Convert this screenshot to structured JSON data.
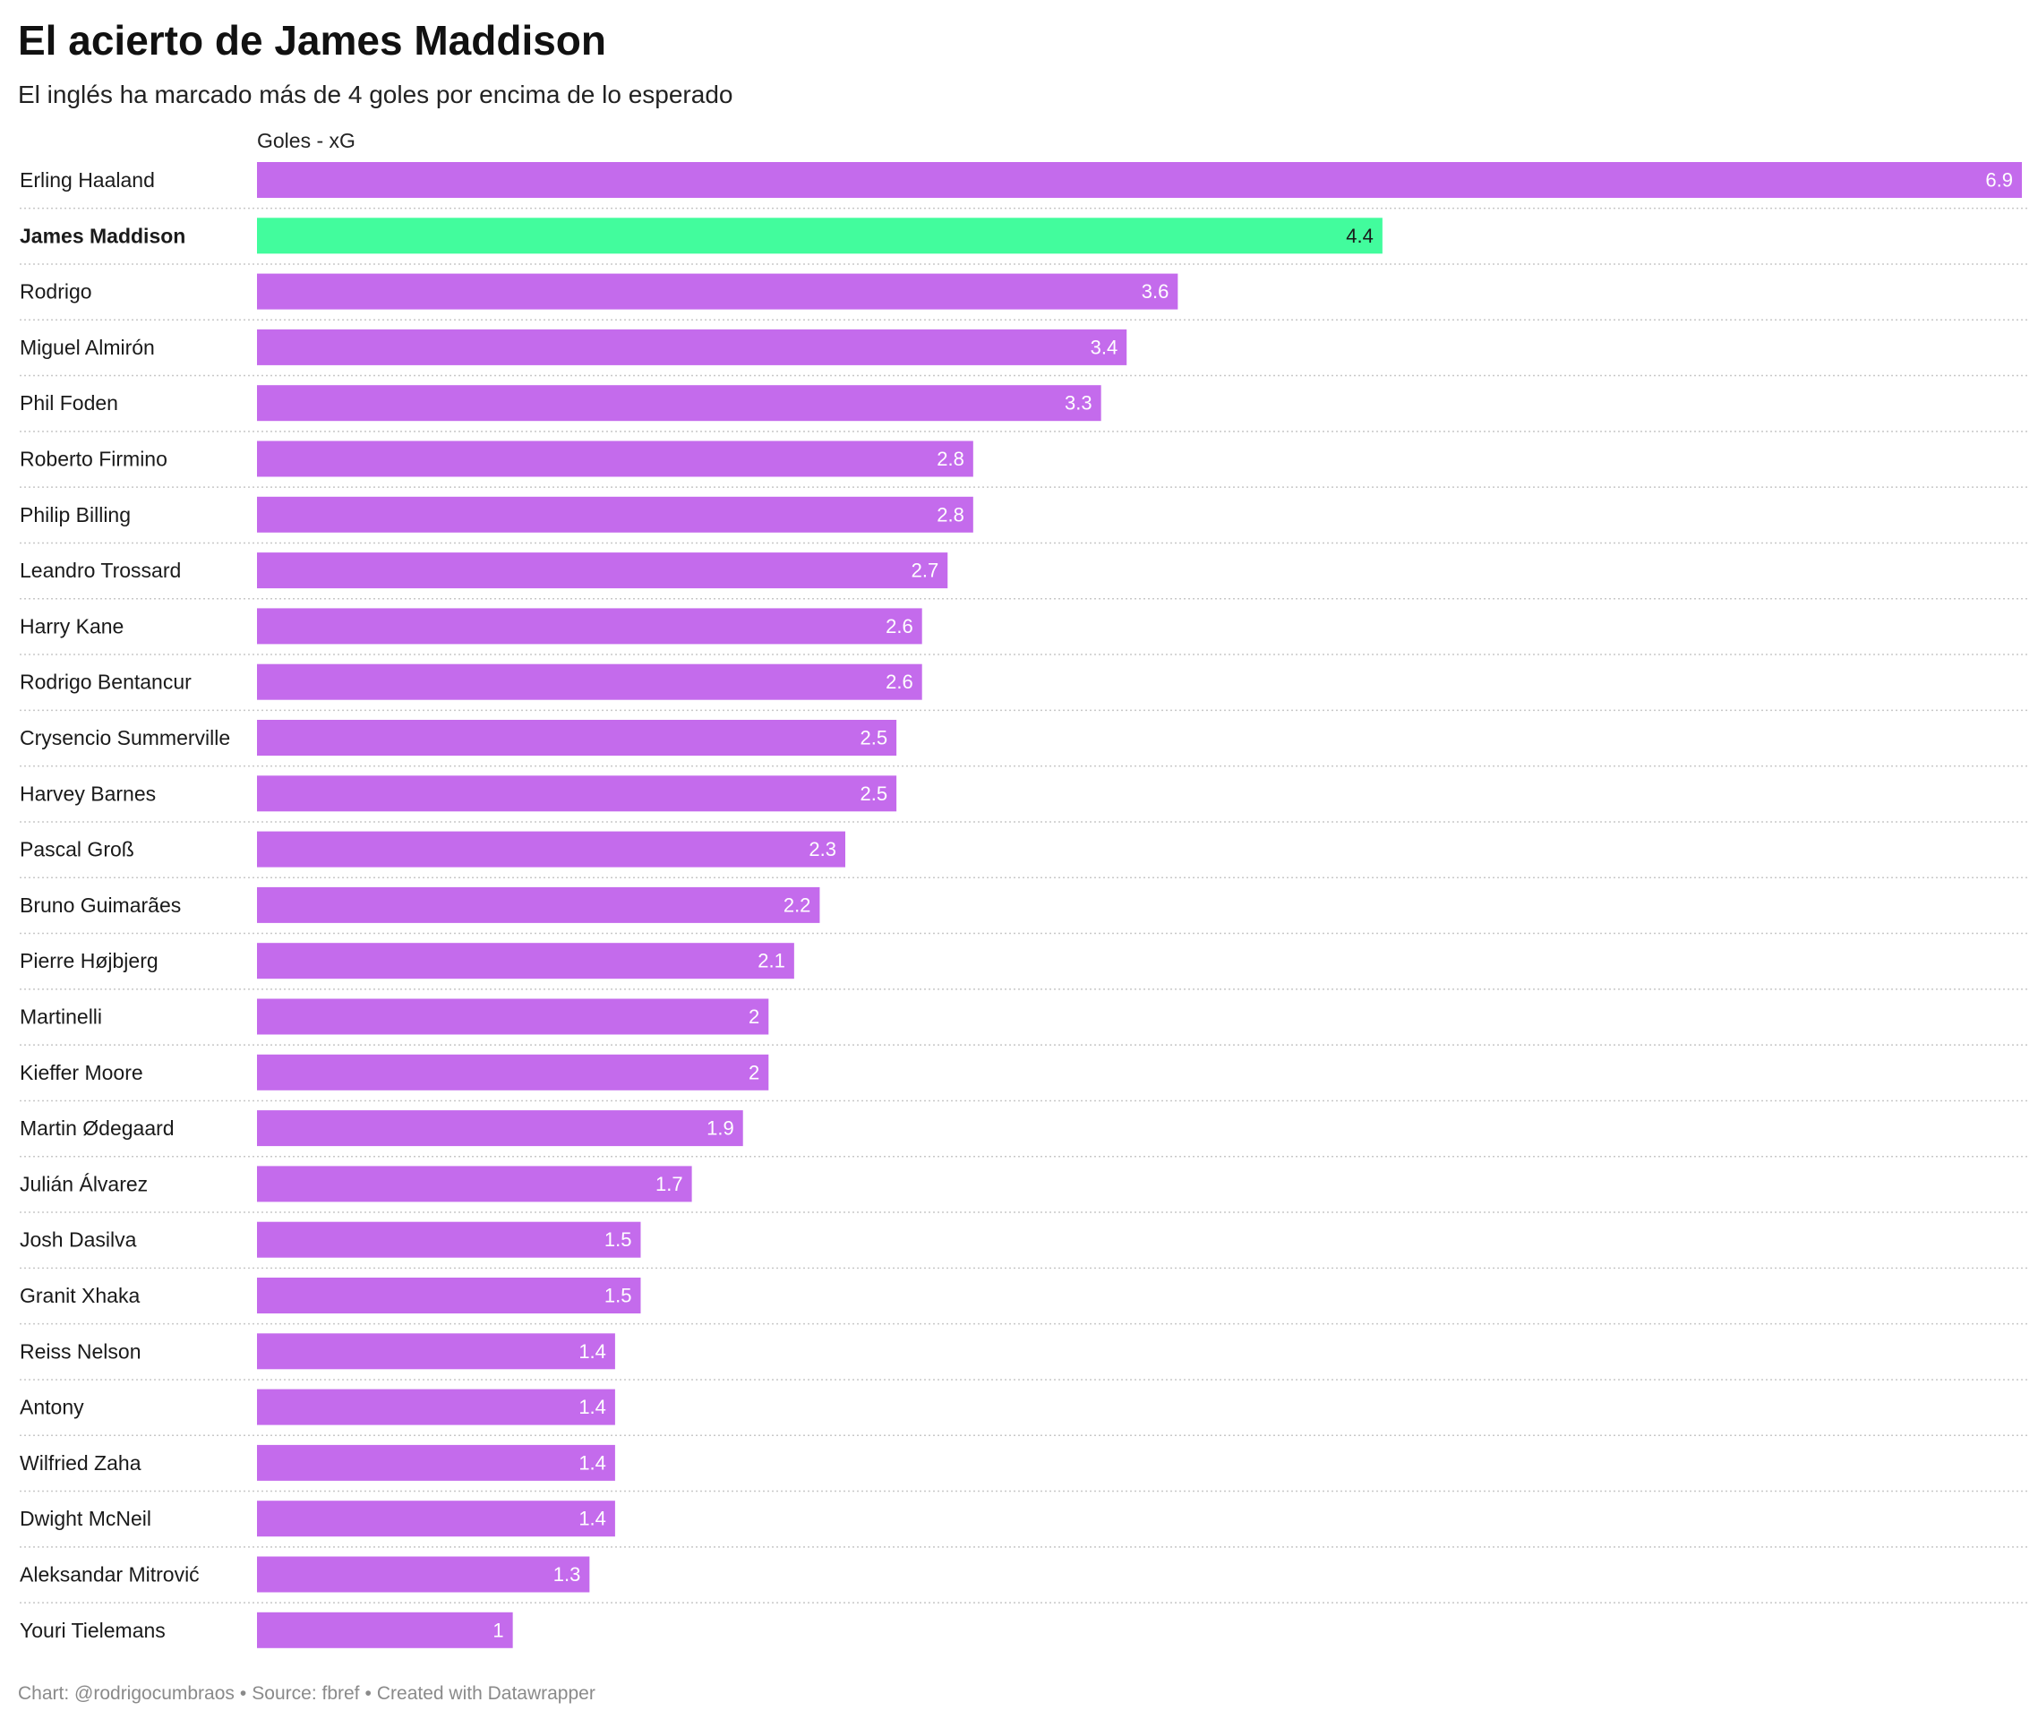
{
  "header": {
    "title": "El acierto de James Maddison",
    "subtitle": "El inglés ha marcado más de 4 goles por encima de lo esperado",
    "column_label": "Goles - xG"
  },
  "footer": {
    "chart_credit": "Chart: @rodrigocumbraos",
    "source": "Source: fbref",
    "created": "Created with Datawrapper",
    "separator": "•"
  },
  "colors": {
    "bar_default": "#c46bec",
    "bar_highlight": "#42fc9d",
    "value_label_default": "#ffffff",
    "value_label_highlight": "#1a1a1a",
    "row_divider": "#c8c8c8"
  },
  "chart_data": {
    "type": "bar",
    "orientation": "horizontal",
    "title": "El acierto de James Maddison",
    "subtitle": "El inglés ha marcado más de 4 goles por encima de lo esperado",
    "value_label": "Goles - xG",
    "xlim": [
      0,
      6.9
    ],
    "grid": false,
    "highlight": "James Maddison",
    "categories": [
      "Erling Haaland",
      "James Maddison",
      "Rodrigo",
      "Miguel Almirón",
      "Phil Foden",
      "Roberto Firmino",
      "Philip Billing",
      "Leandro Trossard",
      "Harry Kane",
      "Rodrigo Bentancur",
      "Crysencio Summerville",
      "Harvey Barnes",
      "Pascal Groß",
      "Bruno Guimarães",
      "Pierre Højbjerg",
      "Martinelli",
      "Kieffer Moore",
      "Martin Ødegaard",
      "Julián Álvarez",
      "Josh Dasilva",
      "Granit Xhaka",
      "Reiss Nelson",
      "Antony",
      "Wilfried Zaha",
      "Dwight McNeil",
      "Aleksandar Mitrović",
      "Youri Tielemans"
    ],
    "values": [
      6.9,
      4.4,
      3.6,
      3.4,
      3.3,
      2.8,
      2.8,
      2.7,
      2.6,
      2.6,
      2.5,
      2.5,
      2.3,
      2.2,
      2.1,
      2,
      2,
      1.9,
      1.7,
      1.5,
      1.5,
      1.4,
      1.4,
      1.4,
      1.4,
      1.3,
      1
    ]
  }
}
